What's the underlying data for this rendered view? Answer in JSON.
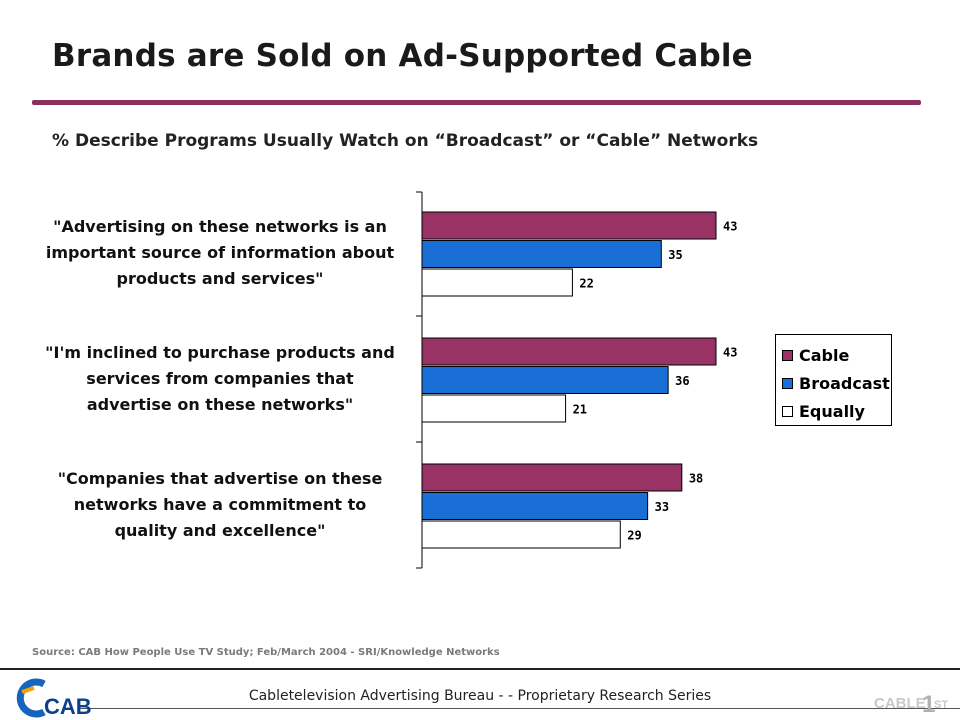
{
  "slide": {
    "title": "Brands are Sold on Ad-Supported Cable",
    "subtitle": "% Describe Programs Usually Watch on “Broadcast” or “Cable” Networks",
    "source": "Source: CAB How People Use TV Study; Feb/March 2004 - SRI/Knowledge Networks",
    "footer": "Cabletelevision Advertising Bureau - - Proprietary Research Series",
    "logo_left": "CAB",
    "logo_right": "CABLE 1ST"
  },
  "legend": [
    {
      "label": "Cable",
      "color": "#993366"
    },
    {
      "label": "Broadcast",
      "color": "#1a6fd6"
    },
    {
      "label": "Equally",
      "color": "#ffffff"
    }
  ],
  "chart_data": {
    "type": "bar",
    "orientation": "horizontal",
    "categories": [
      "\"Advertising on these networks is an important source of information about products and services\"",
      "\"I'm inclined to purchase products and services from companies that advertise on these networks\"",
      "\"Companies that advertise on these networks have a commitment to quality and excellence\""
    ],
    "category_lines": [
      [
        "\"Advertising on these networks is an",
        "important source of information about",
        "products and services\""
      ],
      [
        "\"I'm inclined to purchase products and",
        "services from companies that",
        "advertise on these networks\""
      ],
      [
        "\"Companies that advertise on these",
        "networks have a commitment to",
        "quality and excellence\""
      ]
    ],
    "series": [
      {
        "name": "Cable",
        "values": [
          43,
          43,
          38
        ],
        "color": "#993366"
      },
      {
        "name": "Broadcast",
        "values": [
          35,
          36,
          33
        ],
        "color": "#1a6fd6"
      },
      {
        "name": "Equally",
        "values": [
          22,
          21,
          29
        ],
        "color": "#ffffff"
      }
    ],
    "xlim": [
      0,
      50
    ],
    "grid": false,
    "legend_position": "right"
  }
}
